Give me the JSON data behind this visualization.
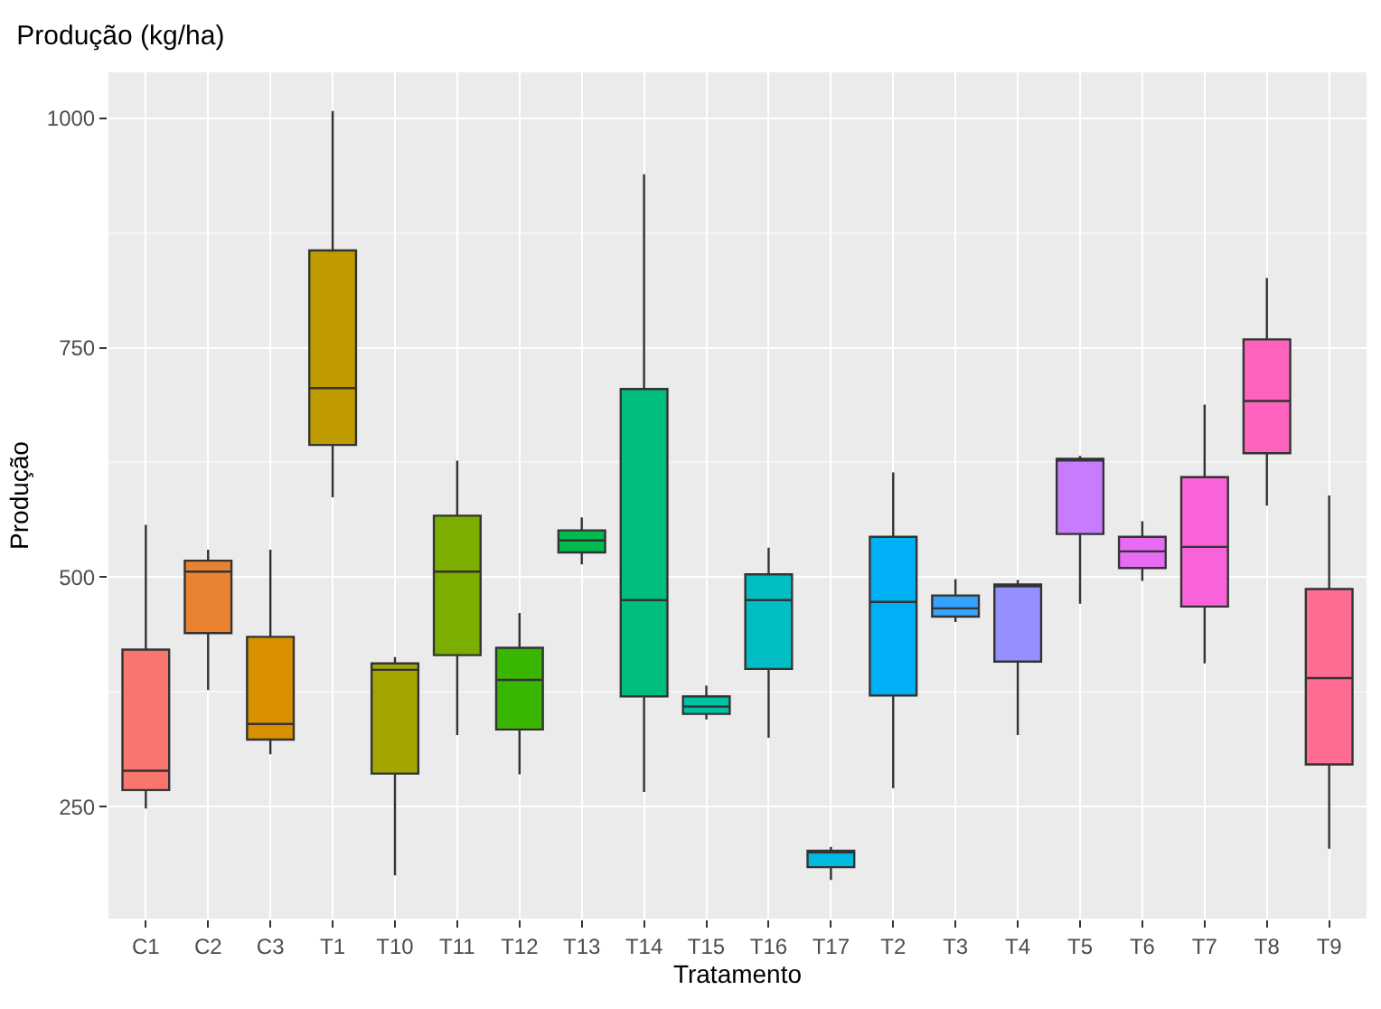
{
  "chart_data": {
    "type": "box",
    "title": "Produção (kg/ha)",
    "xlabel": "Tratamento",
    "ylabel": "Produção",
    "categories": [
      "C1",
      "C2",
      "C3",
      "T1",
      "T10",
      "T11",
      "T12",
      "T13",
      "T14",
      "T15",
      "T16",
      "T17",
      "T2",
      "T3",
      "T4",
      "T5",
      "T6",
      "T7",
      "T8",
      "T9"
    ],
    "colors": [
      "#F8766D",
      "#EA8331",
      "#D89000",
      "#C09B00",
      "#A3A500",
      "#7CAE00",
      "#39B600",
      "#00BB4E",
      "#00BF7D",
      "#00C1A3",
      "#00BFC4",
      "#00BAE0",
      "#00B0F6",
      "#35A2FF",
      "#9590FF",
      "#C77CFF",
      "#E76BF3",
      "#FA62DB",
      "#FF62BC",
      "#FF6C91"
    ],
    "boxes": [
      {
        "low": 248,
        "q1": 268,
        "median": 289,
        "q3": 421,
        "high": 557
      },
      {
        "low": 377,
        "q1": 439,
        "median": 506,
        "q3": 518,
        "high": 530
      },
      {
        "low": 307,
        "q1": 323,
        "median": 340,
        "q3": 435,
        "high": 530
      },
      {
        "low": 587,
        "q1": 644,
        "median": 706,
        "q3": 856,
        "high": 1008
      },
      {
        "low": 175,
        "q1": 286,
        "median": 399,
        "q3": 406,
        "high": 413
      },
      {
        "low": 328,
        "q1": 415,
        "median": 506,
        "q3": 567,
        "high": 627
      },
      {
        "low": 285,
        "q1": 334,
        "median": 388,
        "q3": 423,
        "high": 461
      },
      {
        "low": 514,
        "q1": 527,
        "median": 540,
        "q3": 551,
        "high": 565
      },
      {
        "low": 266,
        "q1": 370,
        "median": 475,
        "q3": 705,
        "high": 939
      },
      {
        "low": 345,
        "q1": 351,
        "median": 359,
        "q3": 370,
        "high": 382
      },
      {
        "low": 325,
        "q1": 400,
        "median": 475,
        "q3": 503,
        "high": 532
      },
      {
        "low": 170,
        "q1": 184,
        "median": 200,
        "q3": 202,
        "high": 206
      },
      {
        "low": 270,
        "q1": 371,
        "median": 473,
        "q3": 544,
        "high": 614
      },
      {
        "low": 451,
        "q1": 457,
        "median": 466,
        "q3": 480,
        "high": 498
      },
      {
        "low": 328,
        "q1": 408,
        "median": 491,
        "q3": 492,
        "high": 497
      },
      {
        "low": 471,
        "q1": 547,
        "median": 627,
        "q3": 629,
        "high": 632
      },
      {
        "low": 496,
        "q1": 510,
        "median": 528,
        "q3": 544,
        "high": 561
      },
      {
        "low": 406,
        "q1": 468,
        "median": 533,
        "q3": 609,
        "high": 688
      },
      {
        "low": 578,
        "q1": 635,
        "median": 692,
        "q3": 759,
        "high": 826
      },
      {
        "low": 204,
        "q1": 296,
        "median": 390,
        "q3": 487,
        "high": 589
      }
    ],
    "ylim": [
      128,
      1050
    ],
    "yticks": [
      250,
      500,
      750,
      1000
    ],
    "grid": true,
    "legend": false
  }
}
